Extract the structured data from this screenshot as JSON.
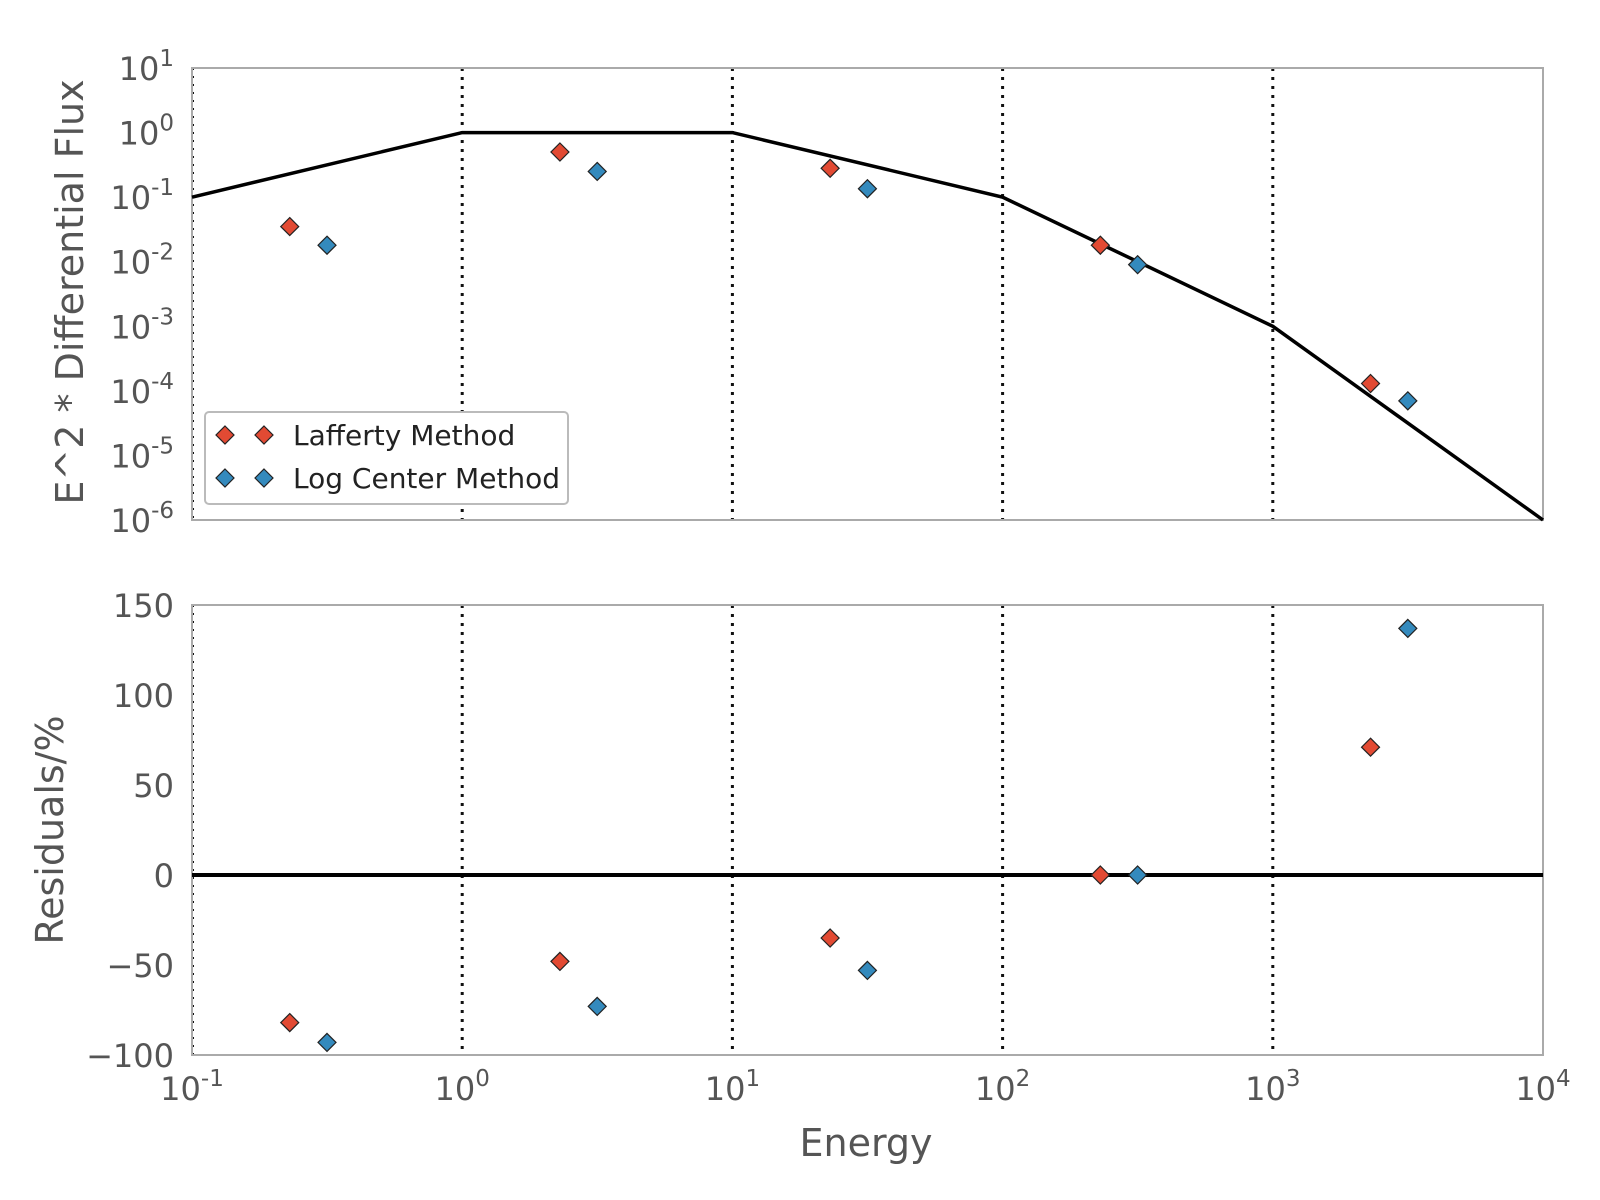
{
  "chart_data": [
    {
      "type": "scatter",
      "xscale": "log",
      "yscale": "log",
      "xlim": [
        0.1,
        10000
      ],
      "ylim": [
        1e-06,
        10
      ],
      "ylabel": "E^2 * Differential Flux",
      "xlabel": "",
      "x_ticks": [
        "10^-1",
        "10^0",
        "10^1",
        "10^2",
        "10^3",
        "10^4"
      ],
      "y_ticks": [
        "10^1",
        "10^0",
        "10^-1",
        "10^-2",
        "10^-3",
        "10^-4",
        "10^-5",
        "10^-6"
      ],
      "vlines": [
        1,
        10,
        100,
        1000
      ],
      "legend": {
        "position": "lower-left",
        "entries": [
          "Lafferty Method",
          "Log Center Method"
        ]
      },
      "model_line": {
        "x": [
          0.1,
          1,
          10,
          100,
          1000,
          10000
        ],
        "y": [
          0.1,
          1,
          1,
          0.1,
          0.001,
          1e-06
        ]
      },
      "series": [
        {
          "name": "Lafferty Method",
          "color": "#e24a33",
          "x": [
            0.23,
            2.3,
            23,
            230,
            2300
          ],
          "y": [
            0.035,
            0.5,
            0.28,
            0.018,
            0.00013
          ]
        },
        {
          "name": "Log Center Method",
          "color": "#348abd",
          "x": [
            0.316,
            3.16,
            31.6,
            316,
            3160
          ],
          "y": [
            0.018,
            0.25,
            0.135,
            0.009,
            7e-05
          ]
        }
      ]
    },
    {
      "type": "scatter",
      "xscale": "log",
      "xlim": [
        0.1,
        10000
      ],
      "ylim": [
        -100,
        150
      ],
      "xlabel": "Energy",
      "ylabel": "Residuals/%",
      "x_ticks": [
        "10^-1",
        "10^0",
        "10^1",
        "10^2",
        "10^3",
        "10^4"
      ],
      "y_ticks": [
        "150",
        "100",
        "50",
        "0",
        "−50",
        "−100"
      ],
      "y_tick_values": [
        150,
        100,
        50,
        0,
        -50,
        -100
      ],
      "vlines": [
        1,
        10,
        100,
        1000
      ],
      "hline": 0,
      "series": [
        {
          "name": "Lafferty Method",
          "color": "#e24a33",
          "x": [
            0.23,
            2.3,
            23,
            230,
            2300
          ],
          "y": [
            -82,
            -48,
            -35,
            0,
            71
          ]
        },
        {
          "name": "Log Center Method",
          "color": "#348abd",
          "x": [
            0.316,
            3.16,
            31.6,
            316,
            3160
          ],
          "y": [
            -93,
            -73,
            -53,
            0,
            137
          ]
        }
      ]
    }
  ]
}
